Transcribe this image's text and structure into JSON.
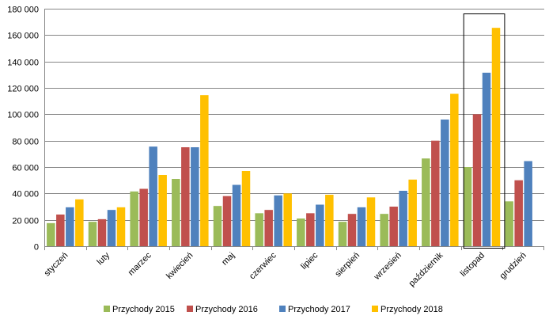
{
  "chart_data": {
    "type": "bar",
    "categories": [
      "styczeń",
      "luty",
      "marzec",
      "kwiecień",
      "maj",
      "czerwiec",
      "lipiec",
      "sierpień",
      "wrzesień",
      "październik",
      "listopad",
      "grudzień"
    ],
    "series": [
      {
        "name": "Przychody 2015",
        "color": "#9BBB59",
        "values": [
          17500,
          18500,
          41500,
          51000,
          30500,
          25000,
          21000,
          18500,
          24500,
          66500,
          60000,
          34000
        ]
      },
      {
        "name": "Przychody 2016",
        "color": "#C0504D",
        "values": [
          24000,
          20500,
          43500,
          75000,
          38000,
          27500,
          25000,
          24500,
          30000,
          80000,
          100000,
          50000
        ]
      },
      {
        "name": "Przychody 2017",
        "color": "#4F81BD",
        "values": [
          29500,
          27500,
          75500,
          75000,
          46500,
          38500,
          31500,
          29500,
          42000,
          96000,
          131500,
          64500
        ]
      },
      {
        "name": "Przychody 2018",
        "color": "#FFC000",
        "values": [
          35500,
          29500,
          54000,
          114500,
          57000,
          40000,
          39000,
          37000,
          50500,
          115500,
          165500,
          null
        ]
      }
    ],
    "y_ticks": [
      "0",
      "20 000",
      "40 000",
      "60 000",
      "80 000",
      "100 000",
      "120 000",
      "140 000",
      "160 000",
      "180 000"
    ],
    "ylim": [
      0,
      180000
    ],
    "grid": true,
    "legend_position": "bottom",
    "highlighted_category": "listopad"
  }
}
